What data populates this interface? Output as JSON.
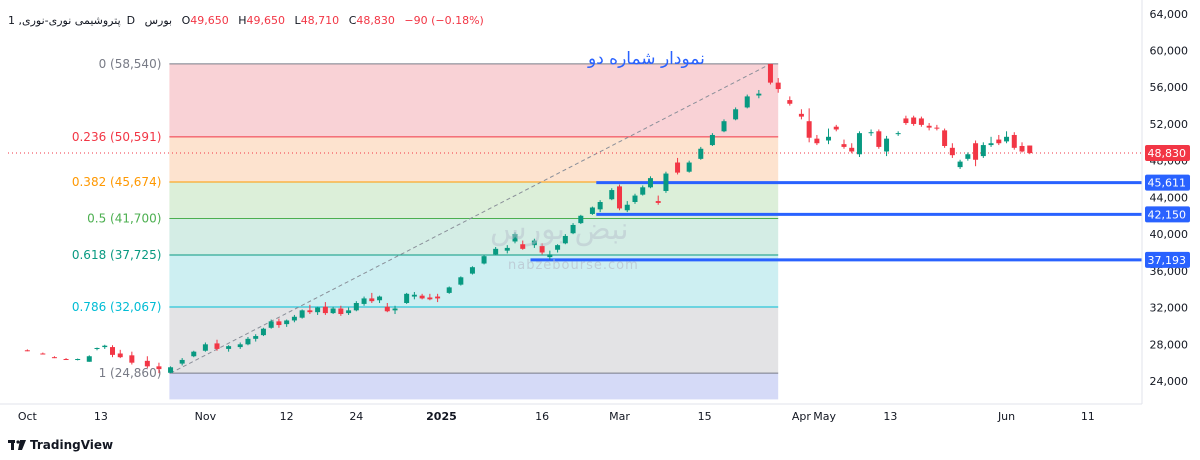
{
  "header": {
    "symbol": "1 ,پتروشیمی نوری-نوری",
    "interval": "D",
    "exchange": "بورس",
    "open_label": "O",
    "open": "49,650",
    "high_label": "H",
    "high": "49,650",
    "low_label": "L",
    "low": "48,710",
    "close_label": "C",
    "close": "48,830",
    "change": "−90 (−0.18%)"
  },
  "title": "نمودار شماره دو",
  "watermark": {
    "text": "نبض بورس",
    "site": "nabzebourse.com"
  },
  "brand": {
    "name": "TradingView",
    "logo": "tradingview-logo"
  },
  "colors": {
    "up": "#089981",
    "down": "#f23645",
    "level_line": "#2962ff",
    "title": "#2962ff"
  },
  "chart_data": {
    "type": "candlestick",
    "y_axis": {
      "range": [
        21500,
        65500
      ],
      "ticks": [
        24000,
        28000,
        32000,
        36000,
        40000,
        44000,
        48000,
        52000,
        56000,
        60000,
        64000
      ],
      "tick_labels": [
        "24,000",
        "28,000",
        "32,000",
        "36,000",
        "40,000",
        "44,000",
        "48,000",
        "52,000",
        "56,000",
        "60,000",
        "64,000"
      ],
      "position": "right"
    },
    "x_axis": {
      "ticks": [
        {
          "t": 0,
          "label": "Oct",
          "bold": false
        },
        {
          "t": 19,
          "label": "13",
          "bold": false
        },
        {
          "t": 46,
          "label": "Nov",
          "bold": false
        },
        {
          "t": 67,
          "label": "12",
          "bold": false
        },
        {
          "t": 85,
          "label": "24",
          "bold": false
        },
        {
          "t": 107,
          "label": "2025",
          "bold": true
        },
        {
          "t": 133,
          "label": "16",
          "bold": false
        },
        {
          "t": 153,
          "label": "Mar",
          "bold": false
        },
        {
          "t": 175,
          "label": "15",
          "bold": false
        },
        {
          "t": 200,
          "label": "Apr",
          "bold": false
        },
        {
          "t": 206,
          "label": "May",
          "bold": false
        },
        {
          "t": 223,
          "label": "13",
          "bold": false
        },
        {
          "t": 253,
          "label": "Jun",
          "bold": false
        },
        {
          "t": 274,
          "label": "11",
          "bold": false
        }
      ],
      "range": [
        -5,
        288
      ]
    },
    "fibonacci": {
      "start_t": 37,
      "end_t": 194,
      "anchor": {
        "t": 37,
        "price": 24860
      },
      "peak": {
        "t": 192,
        "price": 58540
      },
      "levels": [
        {
          "ratio": "0",
          "price": 58540,
          "label": "0 (58,540)",
          "color": "#787b86",
          "fill": "#f9d2d6"
        },
        {
          "ratio": "0.236",
          "price": 50591,
          "label": "0.236 (50,591)",
          "color": "#f23645",
          "fill": "#fde3cf"
        },
        {
          "ratio": "0.382",
          "price": 45674,
          "label": "0.382 (45,674)",
          "color": "#ff9800",
          "fill": "#dcefd9"
        },
        {
          "ratio": "0.5",
          "price": 41700,
          "label": "0.5 (41,700)",
          "color": "#4caf50",
          "fill": "#d4ede5"
        },
        {
          "ratio": "0.618",
          "price": 37725,
          "label": "0.618 (37,725)",
          "color": "#089981",
          "fill": "#cdeff2"
        },
        {
          "ratio": "0.786",
          "price": 32067,
          "label": "0.786 (32,067)",
          "color": "#00bcd4",
          "fill": "#e3e3e5"
        },
        {
          "ratio": "1",
          "price": 24860,
          "label": "1 (24,860)",
          "color": "#787b86",
          "fill": "#d5daf7"
        }
      ],
      "bottom_price": 22000
    },
    "horizontal_levels": [
      {
        "price": 45611,
        "label": "45,611",
        "start_t": 147
      },
      {
        "price": 42150,
        "label": "42,150",
        "start_t": 147
      },
      {
        "price": 37193,
        "label": "37,193",
        "start_t": 130
      }
    ],
    "last_price": {
      "price": 48830,
      "label": "48,830"
    },
    "candles": [
      {
        "t": 0,
        "o": 27350,
        "h": 27450,
        "l": 27250,
        "c": 27300
      },
      {
        "t": 4,
        "o": 27000,
        "h": 27100,
        "l": 26900,
        "c": 26950
      },
      {
        "t": 7,
        "o": 26600,
        "h": 26700,
        "l": 26500,
        "c": 26550
      },
      {
        "t": 10,
        "o": 26400,
        "h": 26500,
        "l": 26300,
        "c": 26350
      },
      {
        "t": 13,
        "o": 26350,
        "h": 26450,
        "l": 26250,
        "c": 26400
      },
      {
        "t": 16,
        "o": 26100,
        "h": 26800,
        "l": 26100,
        "c": 26700
      },
      {
        "t": 18,
        "o": 27500,
        "h": 27650,
        "l": 27350,
        "c": 27600
      },
      {
        "t": 20,
        "o": 27700,
        "h": 27950,
        "l": 27500,
        "c": 27850
      },
      {
        "t": 22,
        "o": 27700,
        "h": 27900,
        "l": 26600,
        "c": 26850
      },
      {
        "t": 24,
        "o": 27000,
        "h": 27400,
        "l": 26500,
        "c": 26600
      },
      {
        "t": 27,
        "o": 26800,
        "h": 27200,
        "l": 25800,
        "c": 26000
      },
      {
        "t": 31,
        "o": 26200,
        "h": 26700,
        "l": 25400,
        "c": 25600
      },
      {
        "t": 34,
        "o": 25600,
        "h": 26000,
        "l": 24860,
        "c": 25300
      },
      {
        "t": 37,
        "o": 24900,
        "h": 25600,
        "l": 24860,
        "c": 25500
      },
      {
        "t": 40,
        "o": 25900,
        "h": 26500,
        "l": 25700,
        "c": 26300
      },
      {
        "t": 43,
        "o": 26700,
        "h": 27300,
        "l": 26600,
        "c": 27200
      },
      {
        "t": 46,
        "o": 27300,
        "h": 28200,
        "l": 27200,
        "c": 28000
      },
      {
        "t": 49,
        "o": 28100,
        "h": 28500,
        "l": 27300,
        "c": 27500
      },
      {
        "t": 52,
        "o": 27500,
        "h": 27900,
        "l": 27200,
        "c": 27800
      },
      {
        "t": 55,
        "o": 27700,
        "h": 28200,
        "l": 27500,
        "c": 28000
      },
      {
        "t": 57,
        "o": 28000,
        "h": 28800,
        "l": 27900,
        "c": 28600
      },
      {
        "t": 59,
        "o": 28600,
        "h": 29100,
        "l": 28300,
        "c": 28900
      },
      {
        "t": 61,
        "o": 29000,
        "h": 29800,
        "l": 28900,
        "c": 29700
      },
      {
        "t": 63,
        "o": 29800,
        "h": 30700,
        "l": 29700,
        "c": 30500
      },
      {
        "t": 65,
        "o": 30500,
        "h": 30800,
        "l": 29800,
        "c": 30100
      },
      {
        "t": 67,
        "o": 30200,
        "h": 30700,
        "l": 29900,
        "c": 30600
      },
      {
        "t": 69,
        "o": 30600,
        "h": 31200,
        "l": 30400,
        "c": 31000
      },
      {
        "t": 71,
        "o": 30900,
        "h": 31800,
        "l": 30800,
        "c": 31700
      },
      {
        "t": 73,
        "o": 31700,
        "h": 32300,
        "l": 31300,
        "c": 31500
      },
      {
        "t": 75,
        "o": 31500,
        "h": 32100,
        "l": 31200,
        "c": 32000
      },
      {
        "t": 77,
        "o": 32100,
        "h": 32600,
        "l": 31200,
        "c": 31400
      },
      {
        "t": 79,
        "o": 31400,
        "h": 32100,
        "l": 31300,
        "c": 31900
      },
      {
        "t": 81,
        "o": 31900,
        "h": 32200,
        "l": 31100,
        "c": 31300
      },
      {
        "t": 83,
        "o": 31400,
        "h": 32000,
        "l": 31200,
        "c": 31700
      },
      {
        "t": 85,
        "o": 31700,
        "h": 32700,
        "l": 31600,
        "c": 32500
      },
      {
        "t": 87,
        "o": 32400,
        "h": 33200,
        "l": 32200,
        "c": 33000
      },
      {
        "t": 89,
        "o": 33000,
        "h": 33600,
        "l": 32500,
        "c": 32700
      },
      {
        "t": 91,
        "o": 32800,
        "h": 33300,
        "l": 32500,
        "c": 33200
      },
      {
        "t": 93,
        "o": 32100,
        "h": 32500,
        "l": 31500,
        "c": 31600
      },
      {
        "t": 95,
        "o": 31700,
        "h": 32200,
        "l": 31300,
        "c": 31900
      },
      {
        "t": 98,
        "o": 32500,
        "h": 33600,
        "l": 32400,
        "c": 33500
      },
      {
        "t": 100,
        "o": 33200,
        "h": 33700,
        "l": 32900,
        "c": 33400
      },
      {
        "t": 102,
        "o": 33300,
        "h": 33500,
        "l": 32900,
        "c": 33000
      },
      {
        "t": 104,
        "o": 33100,
        "h": 33500,
        "l": 32800,
        "c": 32900
      },
      {
        "t": 106,
        "o": 33200,
        "h": 33500,
        "l": 32600,
        "c": 33000
      },
      {
        "t": 109,
        "o": 33600,
        "h": 34300,
        "l": 33500,
        "c": 34200
      },
      {
        "t": 112,
        "o": 34500,
        "h": 35400,
        "l": 34400,
        "c": 35300
      },
      {
        "t": 115,
        "o": 35700,
        "h": 36500,
        "l": 35600,
        "c": 36400
      },
      {
        "t": 118,
        "o": 36800,
        "h": 37700,
        "l": 36700,
        "c": 37600
      },
      {
        "t": 121,
        "o": 37800,
        "h": 38600,
        "l": 37700,
        "c": 38400
      },
      {
        "t": 124,
        "o": 38200,
        "h": 38800,
        "l": 37900,
        "c": 38500
      },
      {
        "t": 126,
        "o": 39200,
        "h": 40200,
        "l": 39000,
        "c": 40000
      },
      {
        "t": 128,
        "o": 38900,
        "h": 39300,
        "l": 38300,
        "c": 38400
      },
      {
        "t": 131,
        "o": 38800,
        "h": 39500,
        "l": 38500,
        "c": 39300
      },
      {
        "t": 133,
        "o": 38700,
        "h": 39000,
        "l": 37800,
        "c": 38000
      },
      {
        "t": 135,
        "o": 37500,
        "h": 38200,
        "l": 37200,
        "c": 37800
      },
      {
        "t": 137,
        "o": 38300,
        "h": 38900,
        "l": 38000,
        "c": 38800
      },
      {
        "t": 139,
        "o": 39000,
        "h": 40000,
        "l": 38900,
        "c": 39800
      },
      {
        "t": 141,
        "o": 40100,
        "h": 41200,
        "l": 40000,
        "c": 41000
      },
      {
        "t": 143,
        "o": 41200,
        "h": 42100,
        "l": 41100,
        "c": 42000
      },
      {
        "t": 146,
        "o": 42200,
        "h": 43000,
        "l": 42100,
        "c": 42900
      },
      {
        "t": 148,
        "o": 42700,
        "h": 43700,
        "l": 42400,
        "c": 43500
      },
      {
        "t": 151,
        "o": 43800,
        "h": 45000,
        "l": 43700,
        "c": 44800
      },
      {
        "t": 153,
        "o": 45200,
        "h": 45400,
        "l": 42600,
        "c": 42800
      },
      {
        "t": 155,
        "o": 42600,
        "h": 43600,
        "l": 42400,
        "c": 43200
      },
      {
        "t": 157,
        "o": 43500,
        "h": 44400,
        "l": 43300,
        "c": 44200
      },
      {
        "t": 159,
        "o": 44300,
        "h": 45300,
        "l": 44200,
        "c": 45100
      },
      {
        "t": 161,
        "o": 45100,
        "h": 46300,
        "l": 45000,
        "c": 46100
      },
      {
        "t": 163,
        "o": 43600,
        "h": 44200,
        "l": 43200,
        "c": 43400
      },
      {
        "t": 165,
        "o": 44700,
        "h": 46800,
        "l": 44500,
        "c": 46600
      },
      {
        "t": 168,
        "o": 47800,
        "h": 48300,
        "l": 46500,
        "c": 46700
      },
      {
        "t": 171,
        "o": 46800,
        "h": 48000,
        "l": 46700,
        "c": 47800
      },
      {
        "t": 174,
        "o": 48200,
        "h": 49500,
        "l": 48100,
        "c": 49300
      },
      {
        "t": 177,
        "o": 49700,
        "h": 51000,
        "l": 49600,
        "c": 50800
      },
      {
        "t": 180,
        "o": 51200,
        "h": 52500,
        "l": 51100,
        "c": 52300
      },
      {
        "t": 183,
        "o": 52500,
        "h": 53800,
        "l": 52400,
        "c": 53600
      },
      {
        "t": 186,
        "o": 53800,
        "h": 55200,
        "l": 53700,
        "c": 55000
      },
      {
        "t": 189,
        "o": 55100,
        "h": 55700,
        "l": 54800,
        "c": 55300
      },
      {
        "t": 192,
        "o": 58540,
        "h": 58540,
        "l": 56300,
        "c": 56500
      },
      {
        "t": 194,
        "o": 56500,
        "h": 57000,
        "l": 55400,
        "c": 55800
      },
      {
        "t": 197,
        "o": 54600,
        "h": 55000,
        "l": 54000,
        "c": 54200
      },
      {
        "t": 200,
        "o": 53100,
        "h": 53600,
        "l": 52500,
        "c": 52800
      },
      {
        "t": 202,
        "o": 52300,
        "h": 53700,
        "l": 50000,
        "c": 50500
      },
      {
        "t": 204,
        "o": 50400,
        "h": 50800,
        "l": 49700,
        "c": 49900
      },
      {
        "t": 207,
        "o": 50200,
        "h": 51500,
        "l": 49800,
        "c": 50600
      },
      {
        "t": 209,
        "o": 51700,
        "h": 51900,
        "l": 51200,
        "c": 51400
      },
      {
        "t": 211,
        "o": 49800,
        "h": 50300,
        "l": 49300,
        "c": 49500
      },
      {
        "t": 213,
        "o": 49400,
        "h": 49900,
        "l": 48800,
        "c": 49000
      },
      {
        "t": 215,
        "o": 48700,
        "h": 51200,
        "l": 48400,
        "c": 51000
      },
      {
        "t": 218,
        "o": 51000,
        "h": 51400,
        "l": 50700,
        "c": 51100
      },
      {
        "t": 220,
        "o": 51200,
        "h": 51400,
        "l": 49300,
        "c": 49500
      },
      {
        "t": 222,
        "o": 49000,
        "h": 50700,
        "l": 48500,
        "c": 50400
      },
      {
        "t": 225,
        "o": 50900,
        "h": 51200,
        "l": 50700,
        "c": 51000
      },
      {
        "t": 227,
        "o": 52600,
        "h": 52900,
        "l": 51900,
        "c": 52100
      },
      {
        "t": 229,
        "o": 52700,
        "h": 52900,
        "l": 51800,
        "c": 52000
      },
      {
        "t": 231,
        "o": 52600,
        "h": 52800,
        "l": 51700,
        "c": 51900
      },
      {
        "t": 233,
        "o": 51800,
        "h": 52100,
        "l": 51300,
        "c": 51600
      },
      {
        "t": 235,
        "o": 51600,
        "h": 51900,
        "l": 51300,
        "c": 51500
      },
      {
        "t": 237,
        "o": 51300,
        "h": 51500,
        "l": 49400,
        "c": 49600
      },
      {
        "t": 239,
        "o": 49400,
        "h": 49900,
        "l": 48300,
        "c": 48600
      },
      {
        "t": 241,
        "o": 47300,
        "h": 48100,
        "l": 47100,
        "c": 47900
      },
      {
        "t": 243,
        "o": 48200,
        "h": 48900,
        "l": 48000,
        "c": 48700
      },
      {
        "t": 245,
        "o": 49900,
        "h": 50200,
        "l": 47400,
        "c": 48100
      },
      {
        "t": 247,
        "o": 48500,
        "h": 50000,
        "l": 48300,
        "c": 49700
      },
      {
        "t": 249,
        "o": 49700,
        "h": 50600,
        "l": 49500,
        "c": 49900
      },
      {
        "t": 251,
        "o": 50300,
        "h": 50800,
        "l": 49700,
        "c": 49900
      },
      {
        "t": 253,
        "o": 50100,
        "h": 51200,
        "l": 49900,
        "c": 50600
      },
      {
        "t": 255,
        "o": 50800,
        "h": 51100,
        "l": 49200,
        "c": 49400
      },
      {
        "t": 257,
        "o": 49600,
        "h": 50000,
        "l": 48900,
        "c": 49000
      },
      {
        "t": 259,
        "o": 49650,
        "h": 49650,
        "l": 48710,
        "c": 48830
      }
    ]
  }
}
